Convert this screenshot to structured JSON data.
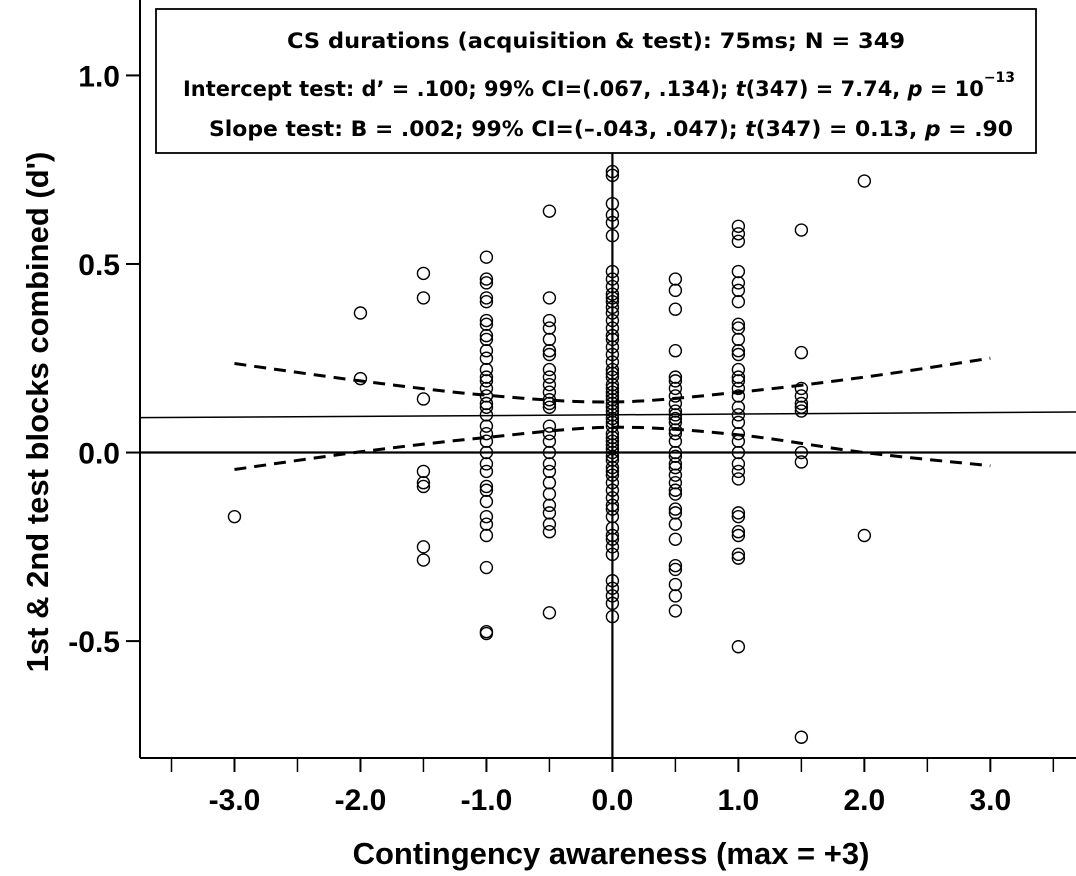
{
  "chart_data": {
    "type": "scatter",
    "xlabel": "Contingency awareness (max = +3)",
    "ylabel": "1st & 2nd test blocks combined (d')",
    "xlim": [
      -3.75,
      3.68
    ],
    "ylim": [
      -0.81,
      1.2
    ],
    "x_ticks": [
      "-3.0",
      "-2.0",
      "-1.0",
      "0.0",
      "1.0",
      "2.0",
      "3.0"
    ],
    "x_tick_values": [
      -3,
      -2,
      -1,
      0,
      1,
      2,
      3
    ],
    "y_ticks": [
      "-0.5",
      "0.0",
      "0.5",
      "1.0"
    ],
    "y_tick_values": [
      -0.5,
      0,
      0.5,
      1.0
    ],
    "annotation": {
      "line1": "CS durations (acquisition & test): 75ms; N = 349",
      "line2_prefix": "Intercept test:  d’ = .100; 99% CI=(.067, .134); ",
      "line2_t": "t",
      "line2_mid": "(347) = 7.74, ",
      "line2_p": "p",
      "line2_eq": " = 10",
      "line2_exp": "−13",
      "line3_prefix": "Slope test:  B = .002; 99% CI=(–.043, .047);  ",
      "line3_t": "t",
      "line3_mid": "(347) = 0.13, ",
      "line3_p": "p",
      "line3_end": " = .90"
    },
    "regression": {
      "intercept": 0.1,
      "slope": 0.002
    },
    "ci_upper": [
      [
        -3,
        0.236
      ],
      [
        -2,
        0.19
      ],
      [
        -1,
        0.152
      ],
      [
        0,
        0.134
      ],
      [
        1,
        0.16
      ],
      [
        2,
        0.2
      ],
      [
        3,
        0.25
      ]
    ],
    "ci_lower": [
      [
        -3,
        -0.045
      ],
      [
        -2,
        0.002
      ],
      [
        -1,
        0.04
      ],
      [
        0,
        0.067
      ],
      [
        1,
        0.047
      ],
      [
        2,
        0.0
      ],
      [
        3,
        -0.035
      ]
    ],
    "points": {
      "-3": [
        -0.17
      ],
      "-2": [
        0.37,
        0.196
      ],
      "-1.5": [
        0.475,
        0.41,
        0.142,
        -0.05,
        -0.08,
        -0.09,
        -0.25,
        -0.285
      ],
      "-1": [
        0.518,
        0.46,
        0.45,
        0.41,
        0.4,
        0.35,
        0.34,
        0.31,
        0.3,
        0.27,
        0.25,
        0.22,
        0.2,
        0.19,
        0.17,
        0.15,
        0.13,
        0.12,
        0.1,
        0.07,
        0.05,
        0.03,
        0.0,
        -0.03,
        -0.05,
        -0.09,
        -0.1,
        -0.13,
        -0.17,
        -0.19,
        -0.22,
        -0.305,
        -0.475,
        -0.48
      ],
      "-0.5": [
        0.64,
        0.41,
        0.35,
        0.33,
        0.3,
        0.27,
        0.26,
        0.22,
        0.2,
        0.18,
        0.16,
        0.14,
        0.13,
        0.12,
        0.07,
        0.05,
        0.03,
        0.0,
        -0.03,
        -0.05,
        -0.08,
        -0.11,
        -0.14,
        -0.16,
        -0.19,
        -0.21,
        -0.425
      ],
      "0": [
        0.745,
        0.735,
        0.66,
        0.63,
        0.61,
        0.575,
        0.48,
        0.46,
        0.44,
        0.42,
        0.41,
        0.4,
        0.385,
        0.37,
        0.35,
        0.33,
        0.31,
        0.3,
        0.28,
        0.26,
        0.24,
        0.22,
        0.21,
        0.2,
        0.18,
        0.17,
        0.16,
        0.15,
        0.14,
        0.13,
        0.12,
        0.11,
        0.1,
        0.09,
        0.08,
        0.07,
        0.05,
        0.04,
        0.03,
        0.02,
        0.01,
        0.0,
        -0.01,
        -0.02,
        -0.04,
        -0.05,
        -0.06,
        -0.08,
        -0.1,
        -0.12,
        -0.14,
        -0.15,
        -0.17,
        -0.2,
        -0.22,
        -0.23,
        -0.25,
        -0.27,
        -0.34,
        -0.36,
        -0.38,
        -0.4,
        -0.435
      ],
      "0.5": [
        0.46,
        0.43,
        0.38,
        0.27,
        0.2,
        0.19,
        0.17,
        0.15,
        0.13,
        0.11,
        0.1,
        0.09,
        0.08,
        0.06,
        0.05,
        0.03,
        0.0,
        -0.01,
        -0.03,
        -0.04,
        -0.06,
        -0.08,
        -0.1,
        -0.11,
        -0.15,
        -0.16,
        -0.19,
        -0.23,
        -0.3,
        -0.31,
        -0.35,
        -0.38,
        -0.42
      ],
      "1": [
        0.6,
        0.58,
        0.56,
        0.48,
        0.45,
        0.43,
        0.4,
        0.34,
        0.33,
        0.3,
        0.27,
        0.26,
        0.22,
        0.2,
        0.19,
        0.17,
        0.15,
        0.12,
        0.1,
        0.08,
        0.05,
        0.03,
        0.0,
        -0.03,
        -0.05,
        -0.07,
        -0.16,
        -0.17,
        -0.21,
        -0.22,
        -0.27,
        -0.28,
        -0.515
      ],
      "1.5": [
        0.59,
        0.265,
        0.17,
        0.15,
        0.13,
        0.12,
        0.11,
        0.0,
        -0.025,
        -0.755
      ],
      "2": [
        0.72,
        -0.22
      ]
    }
  }
}
